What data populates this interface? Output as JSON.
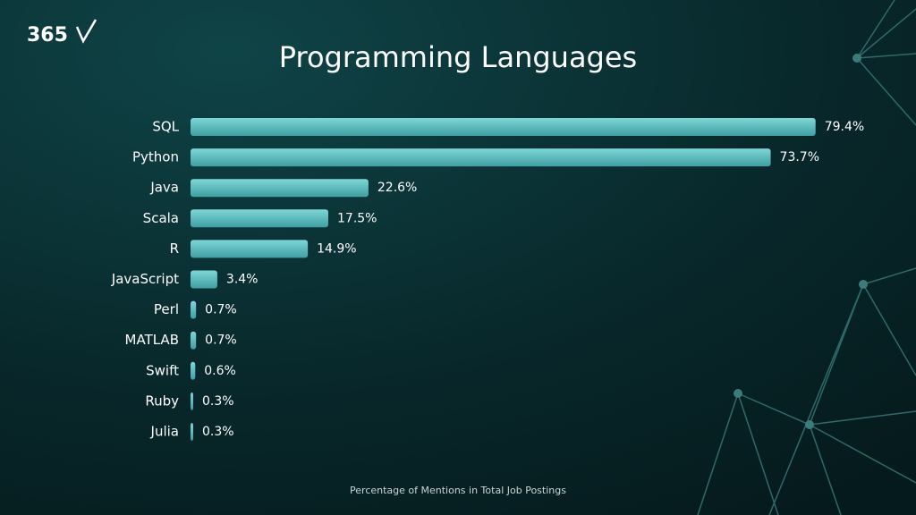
{
  "brand": "365",
  "chart_data": {
    "type": "bar",
    "orientation": "horizontal",
    "title": "Programming Languages",
    "x_label": "Percentage of Mentions in Total Job Postings",
    "categories": [
      "SQL",
      "Python",
      "Java",
      "Scala",
      "R",
      "JavaScript",
      "Perl",
      "MATLAB",
      "Swift",
      "Ruby",
      "Julia"
    ],
    "values": [
      79.4,
      73.7,
      22.6,
      17.5,
      14.9,
      3.4,
      0.7,
      0.7,
      0.6,
      0.3,
      0.3
    ],
    "value_labels": [
      "79.4%",
      "73.7%",
      "22.6%",
      "17.5%",
      "14.9%",
      "3.4%",
      "0.7%",
      "0.7%",
      "0.6%",
      "0.3%",
      "0.3%"
    ],
    "color": "#5cc4c4"
  }
}
